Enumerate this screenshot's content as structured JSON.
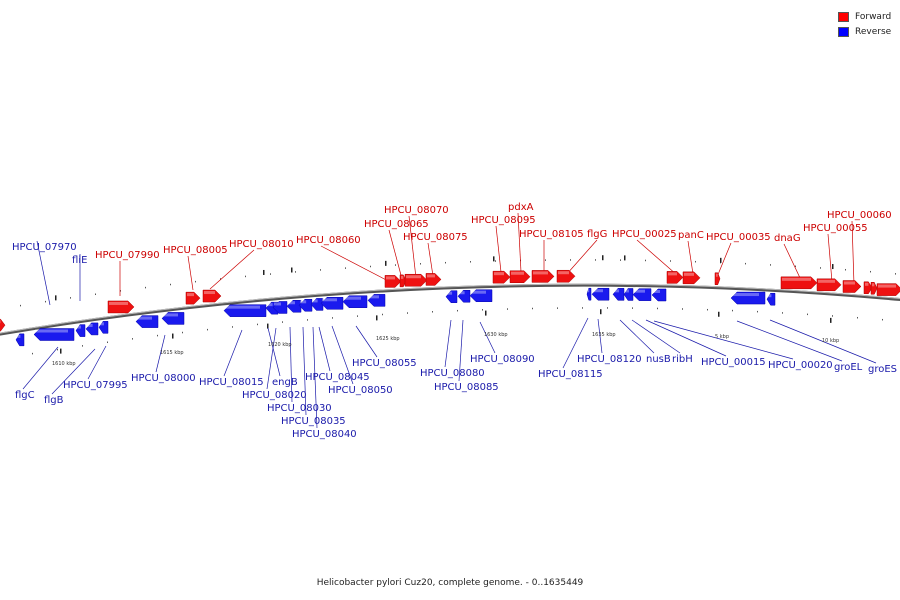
{
  "caption": "Helicobacter pylori Cuz20, complete genome. - 0..1635449",
  "legend": [
    {
      "label": "Forward",
      "color": "#ff0000"
    },
    {
      "label": "Reverse",
      "color": "#0000ff"
    }
  ],
  "colors": {
    "forward": "#ee1111",
    "reverse": "#1a1aee",
    "backbone": "#666666",
    "forward_text": "#cc0000",
    "reverse_text": "#1a1aaa"
  },
  "scale_labels": [
    "1610 kbp",
    "1615 kbp",
    "1620 kbp",
    "1625 kbp",
    "1630 kbp",
    "1635 kbp",
    "5 kbp",
    "10 kbp"
  ],
  "forward_genes": [
    "HPCU_07990",
    "HPCU_08005",
    "HPCU_08010",
    "HPCU_08060",
    "HPCU_08065",
    "HPCU_08070",
    "HPCU_08075",
    "HPCU_08095",
    "pdxA",
    "HPCU_08105",
    "flgG",
    "HPCU_00025",
    "panC",
    "HPCU_00035",
    "dnaG",
    "HPCU_00055",
    "HPCU_00060"
  ],
  "reverse_genes": [
    "HPCU_07970",
    "fliE",
    "flgC",
    "flgB",
    "HPCU_07995",
    "HPCU_08000",
    "HPCU_08015",
    "engB",
    "HPCU_08020",
    "HPCU_08030",
    "HPCU_08035",
    "HPCU_08040",
    "HPCU_08045",
    "HPCU_08050",
    "HPCU_08055",
    "HPCU_08080",
    "HPCU_08085",
    "HPCU_08090",
    "HPCU_08115",
    "HPCU_08120",
    "nusB",
    "ribH",
    "HPCU_00015",
    "HPCU_00020",
    "groEL",
    "groES"
  ]
}
